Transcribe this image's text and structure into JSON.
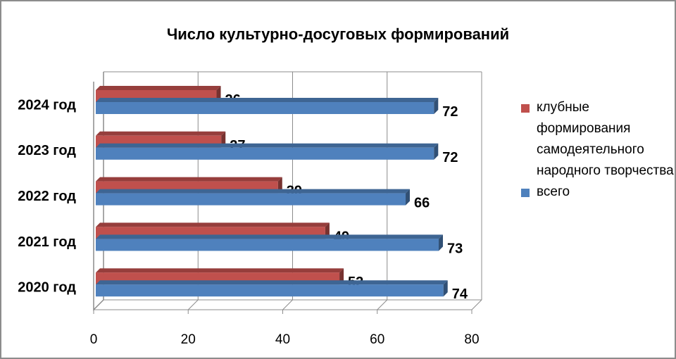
{
  "colors": {
    "clubs": "#c0504d",
    "total": "#4f81bd",
    "grid": "#8c8c8c"
  },
  "chart_data": {
    "type": "bar",
    "orientation": "horizontal",
    "title": "Число культурно-досуговых формирований",
    "categories": [
      "2024 год",
      "2023 год",
      "2022 год",
      "2021 год",
      "2020 год"
    ],
    "series": [
      {
        "name": "клубные формирования самодеятельного народного творчества",
        "color": "#c0504d",
        "values": [
          26,
          27,
          39,
          49,
          52
        ]
      },
      {
        "name": "всего",
        "color": "#4f81bd",
        "values": [
          72,
          72,
          66,
          73,
          74
        ]
      }
    ],
    "xlim": [
      0,
      80
    ],
    "xticks": [
      "0",
      "20",
      "40",
      "60",
      "80"
    ],
    "grid": true,
    "legend_position": "right",
    "style": "3d"
  }
}
